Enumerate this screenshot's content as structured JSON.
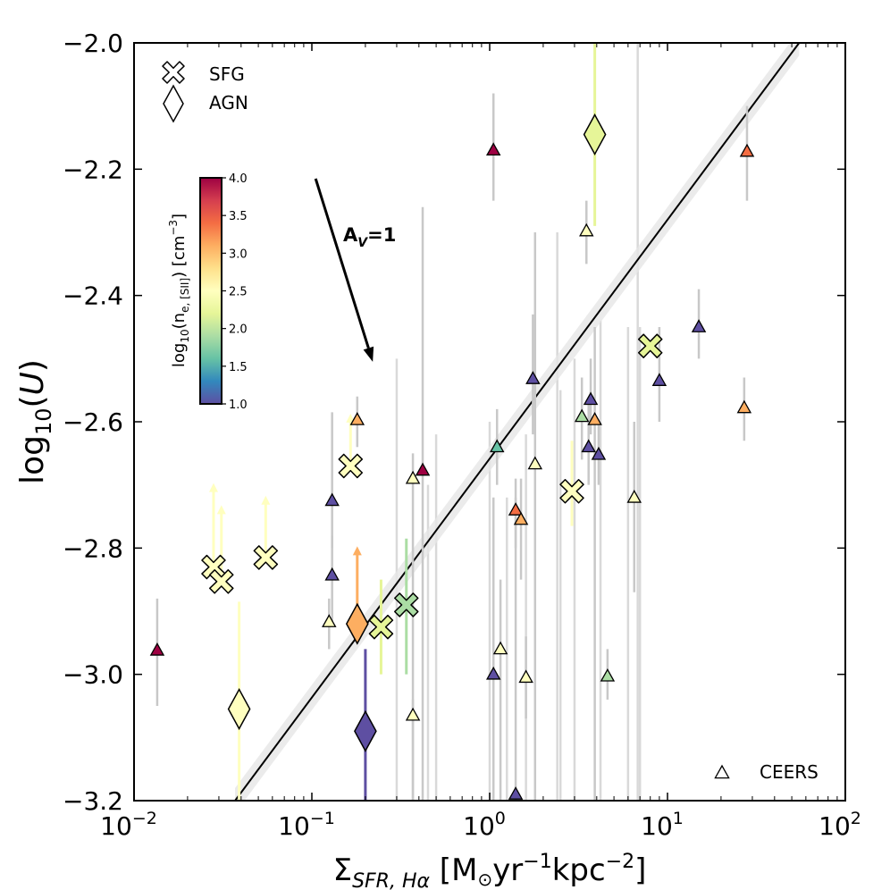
{
  "chart_data": {
    "type": "scatter",
    "xlabel_parts": {
      "base": "Σ",
      "sub": "SFR, Hα",
      "unit_open": " [M",
      "sun": "⊙",
      "yr": "yr",
      "exp1": "−1",
      "kpc": "kpc",
      "exp2": "−2",
      "close": "]"
    },
    "ylabel_parts": {
      "log": "log",
      "sub": "10",
      "rest_open": "(",
      "var": "U",
      "rest_close": ")"
    },
    "xscale": "log",
    "xlim": [
      0.01,
      100
    ],
    "ylim": [
      -3.2,
      -2.0
    ],
    "xticks": [
      0.01,
      0.1,
      1,
      10,
      100
    ],
    "xtick_labels": [
      {
        "base": "10",
        "exp": "−2"
      },
      {
        "base": "10",
        "exp": "−1"
      },
      {
        "base": "10",
        "exp": "0"
      },
      {
        "base": "10",
        "exp": "1"
      },
      {
        "base": "10",
        "exp": "2"
      }
    ],
    "yticks": [
      -3.2,
      -3.0,
      -2.8,
      -2.6,
      -2.4,
      -2.2,
      -2.0
    ],
    "ytick_labels": [
      "−3.2",
      "−3.0",
      "−2.8",
      "−2.6",
      "−2.4",
      "−2.2",
      "−2.0"
    ],
    "legend": {
      "placement": "top-left",
      "sfg_label": "SFG",
      "agn_label": "AGN",
      "ceers_label": "CEERS",
      "ceers_placement": "bottom-right"
    },
    "colorbar": {
      "label_parts": {
        "log": "log",
        "sub": "10",
        "open": "(n",
        "esub": "e, [SII]",
        "unit": ") [cm",
        "exp": "−3",
        "close": "]"
      },
      "range": [
        1.0,
        4.0
      ],
      "ticks": [
        1.0,
        1.5,
        2.0,
        2.5,
        3.0,
        3.5,
        4.0
      ],
      "tick_labels": [
        "1.0",
        "1.5",
        "2.0",
        "2.5",
        "3.0",
        "3.5",
        "4.0"
      ],
      "colors": [
        "#5e4fa2",
        "#3288bd",
        "#66c2a5",
        "#abdda4",
        "#e6f598",
        "#ffffbf",
        "#fee08b",
        "#fdae61",
        "#f46d43",
        "#d53e4f",
        "#9e0142"
      ]
    },
    "arrow_annotation": {
      "label_main": "A",
      "label_sub": "V",
      "label_rest": "=1",
      "from": [
        0.105,
        -2.215
      ],
      "to": [
        0.22,
        -2.505
      ]
    },
    "fit_line": {
      "x": [
        0.037,
        55
      ],
      "y": [
        -3.2,
        -2.0
      ]
    },
    "fit_band_halfwidth_dex": 0.02,
    "series": [
      {
        "name": "SFG",
        "marker": "X",
        "points": [
          {
            "x": 0.028,
            "y": -2.83,
            "ne": 2.6,
            "lower_limit": true,
            "limit_to": -2.7
          },
          {
            "x": 0.031,
            "y": -2.853,
            "ne": 2.6,
            "lower_limit": true,
            "limit_to": -2.735
          },
          {
            "x": 0.055,
            "y": -2.815,
            "ne": 2.6,
            "lower_limit": true,
            "limit_to": -2.72
          },
          {
            "x": 0.165,
            "y": -2.67,
            "ne": 2.6,
            "lower_limit": true,
            "limit_to": -2.59
          },
          {
            "x": 0.245,
            "y": -2.925,
            "ne": 2.3,
            "err_low": -3.0,
            "err_high": -2.85
          },
          {
            "x": 0.34,
            "y": -2.89,
            "ne": 2.0,
            "err_low": -3.0,
            "err_high": -2.785
          },
          {
            "x": 2.9,
            "y": -2.71,
            "ne": 2.6,
            "err_low": -2.765,
            "err_high": -2.63
          },
          {
            "x": 8.0,
            "y": -2.48,
            "ne": 2.3
          }
        ]
      },
      {
        "name": "AGN",
        "marker": "diamond",
        "points": [
          {
            "x": 0.039,
            "y": -3.055,
            "ne": 2.6,
            "err_low": -3.2,
            "err_high": -2.885
          },
          {
            "x": 0.2,
            "y": -3.09,
            "ne": 1.0,
            "err_low": -3.2,
            "err_high": -2.96
          },
          {
            "x": 0.18,
            "y": -2.92,
            "ne": 3.0,
            "lower_limit": true,
            "limit_to": -2.8
          },
          {
            "x": 3.9,
            "y": -2.145,
            "ne": 2.3,
            "err_low": -2.29,
            "err_high": -2.0
          }
        ]
      },
      {
        "name": "CEERS",
        "marker": "triangle",
        "points": [
          {
            "x": 0.0135,
            "y": -2.962,
            "ne": 4.0,
            "err_low": -3.05,
            "err_high": -2.88
          },
          {
            "x": 0.13,
            "y": -2.725,
            "ne": 1.0,
            "err_low": -2.8,
            "err_high": -2.585
          },
          {
            "x": 0.13,
            "y": -2.843,
            "ne": 1.0,
            "err_low": -2.92,
            "err_high": -2.78
          },
          {
            "x": 0.125,
            "y": -2.917,
            "ne": 2.6,
            "err_low": -2.96,
            "err_high": -2.88
          },
          {
            "x": 0.18,
            "y": -2.597,
            "ne": 3.0,
            "err_low": -2.64,
            "err_high": -2.56
          },
          {
            "x": 0.37,
            "y": -2.69,
            "ne": 2.6,
            "err_low": -3.2,
            "err_high": -2.65
          },
          {
            "x": 0.37,
            "y": -3.065,
            "ne": 2.6,
            "err_low": -3.2,
            "err_high": -3.04
          },
          {
            "x": 0.42,
            "y": -2.677,
            "ne": 4.0,
            "err_low": -3.2,
            "err_high": -2.26
          },
          {
            "x": 1.05,
            "y": -2.17,
            "ne": 4.0,
            "err_low": -2.25,
            "err_high": -2.08
          },
          {
            "x": 1.05,
            "y": -3.0,
            "ne": 1.0,
            "err_low": -3.2,
            "err_high": -2.72
          },
          {
            "x": 1.1,
            "y": -2.64,
            "ne": 1.5,
            "err_low": -2.7,
            "err_high": -2.58
          },
          {
            "x": 1.15,
            "y": -2.96,
            "ne": 2.6,
            "err_low": -3.2,
            "err_high": -2.85
          },
          {
            "x": 1.4,
            "y": -2.74,
            "ne": 3.5,
            "err_low": -2.8,
            "err_high": -2.69
          },
          {
            "x": 1.5,
            "y": -2.755,
            "ne": 3.0,
            "err_low": -2.85,
            "err_high": -2.69
          },
          {
            "x": 1.4,
            "y": -3.19,
            "ne": 1.0,
            "err_low": -3.2,
            "err_high": -2.72
          },
          {
            "x": 1.6,
            "y": -3.005,
            "ne": 2.6,
            "err_low": -3.07,
            "err_high": -2.94
          },
          {
            "x": 1.75,
            "y": -2.532,
            "ne": 1.0,
            "err_low": -2.62,
            "err_high": -2.43
          },
          {
            "x": 1.8,
            "y": -2.667,
            "ne": 2.6,
            "err_low": -3.2,
            "err_high": -2.3
          },
          {
            "x": 3.3,
            "y": -2.592,
            "ne": 2.0,
            "err_low": -2.66,
            "err_high": -2.53
          },
          {
            "x": 3.6,
            "y": -2.64,
            "ne": 1.0,
            "err_low": -2.7,
            "err_high": -2.57
          },
          {
            "x": 3.5,
            "y": -2.298,
            "ne": 2.6,
            "err_low": -2.35,
            "err_high": -2.25
          },
          {
            "x": 3.7,
            "y": -2.565,
            "ne": 1.0,
            "err_low": -2.62,
            "err_high": -2.5
          },
          {
            "x": 3.9,
            "y": -2.597,
            "ne": 3.0,
            "err_low": -3.2,
            "err_high": -2.45
          },
          {
            "x": 4.1,
            "y": -2.652,
            "ne": 1.0,
            "err_low": -2.7,
            "err_high": -2.6
          },
          {
            "x": 4.6,
            "y": -3.003,
            "ne": 2.0,
            "err_low": -3.04,
            "err_high": -2.96
          },
          {
            "x": 6.5,
            "y": -2.72,
            "ne": 2.6,
            "err_low": -2.87,
            "err_high": -2.6
          },
          {
            "x": 9.0,
            "y": -2.535,
            "ne": 1.0,
            "err_low": -2.6,
            "err_high": -2.45
          },
          {
            "x": 15.0,
            "y": -2.45,
            "ne": 1.0,
            "err_low": -2.5,
            "err_high": -2.39
          },
          {
            "x": 27.0,
            "y": -2.578,
            "ne": 3.0,
            "err_low": -2.63,
            "err_high": -2.53
          },
          {
            "x": 28.0,
            "y": -2.172,
            "ne": 3.5,
            "err_low": -2.25,
            "err_high": -2.1
          }
        ]
      }
    ],
    "background_errorbars": [
      {
        "x": 0.3,
        "y_low": -3.2,
        "y_high": -2.5
      },
      {
        "x": 0.45,
        "y_low": -3.2,
        "y_high": -2.7
      },
      {
        "x": 0.5,
        "y_low": -3.2,
        "y_high": -2.62
      },
      {
        "x": 1.0,
        "y_low": -3.2,
        "y_high": -2.6
      },
      {
        "x": 2.4,
        "y_low": -3.2,
        "y_high": -2.3
      },
      {
        "x": 2.5,
        "y_low": -3.2,
        "y_high": -2.55
      },
      {
        "x": 3.0,
        "y_low": -3.2,
        "y_high": -2.5
      },
      {
        "x": 4.2,
        "y_low": -3.2,
        "y_high": -2.44
      },
      {
        "x": 6.0,
        "y_low": -3.2,
        "y_high": -2.45
      },
      {
        "x": 6.8,
        "y_low": -3.2,
        "y_high": -2.0
      },
      {
        "x": 7.0,
        "y_low": -3.2,
        "y_high": -2.45
      },
      {
        "x": 1.6,
        "y_low": -3.2,
        "y_high": -2.62
      },
      {
        "x": 1.25,
        "y_low": -3.2,
        "y_high": -2.72
      }
    ]
  }
}
